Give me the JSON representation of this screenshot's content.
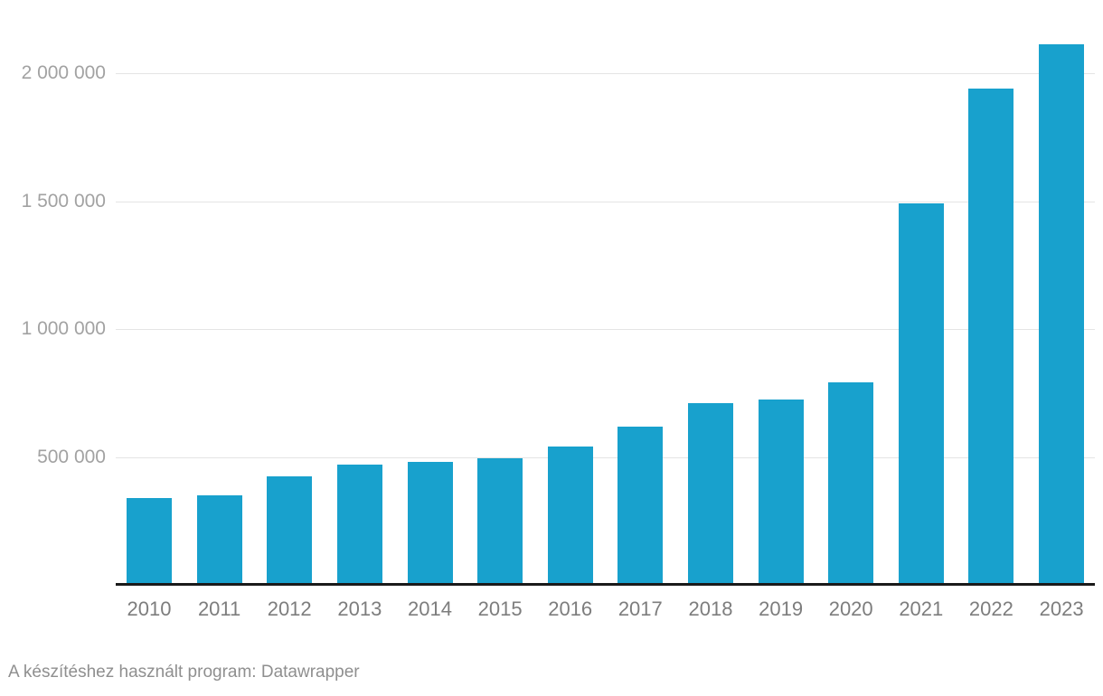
{
  "chart_data": {
    "type": "bar",
    "categories": [
      "2010",
      "2011",
      "2012",
      "2013",
      "2014",
      "2015",
      "2016",
      "2017",
      "2018",
      "2019",
      "2020",
      "2021",
      "2022",
      "2023"
    ],
    "values": [
      340000,
      350000,
      425000,
      470000,
      480000,
      495000,
      540000,
      620000,
      710000,
      725000,
      790000,
      1490000,
      1940000,
      2115000
    ],
    "title": "",
    "xlabel": "",
    "ylabel": "",
    "ylim": [
      0,
      2290000
    ],
    "grid": true,
    "legend_position": "none",
    "yticks": [
      {
        "value": 500000,
        "label": "500 000"
      },
      {
        "value": 1000000,
        "label": "1 000 000"
      },
      {
        "value": 1500000,
        "label": "1 500 000"
      },
      {
        "value": 2000000,
        "label": "2 000 000"
      }
    ],
    "colors": {
      "bar": "#18a1cd",
      "gridline": "#e4e4e4",
      "axis_line": "#1a1a1a",
      "ytick_label": "#a2a2a2",
      "xtick_label": "#7d7d7d",
      "background": "#ffffff"
    }
  },
  "footer": {
    "text": "A készítéshez használt program: Datawrapper"
  }
}
